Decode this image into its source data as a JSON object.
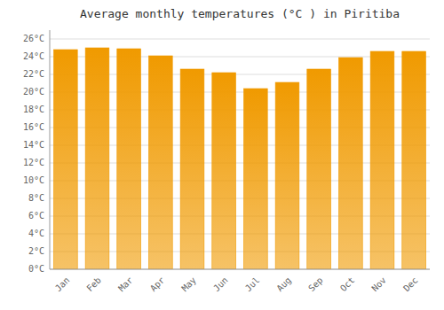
{
  "chart_data": {
    "type": "bar",
    "title": "Average monthly temperatures (°C ) in Piritiba",
    "categories": [
      "Jan",
      "Feb",
      "Mar",
      "Apr",
      "May",
      "Jun",
      "Jul",
      "Aug",
      "Sep",
      "Oct",
      "Nov",
      "Dec"
    ],
    "values": [
      24.8,
      25.0,
      24.9,
      24.1,
      22.6,
      22.2,
      20.4,
      21.1,
      22.6,
      23.9,
      24.6,
      24.6
    ],
    "color": "#f09a00",
    "ylim": [
      0,
      27
    ],
    "yticks": [
      {
        "value": 0,
        "label": "0°C"
      },
      {
        "value": 2,
        "label": "2°C"
      },
      {
        "value": 4,
        "label": "4°C"
      },
      {
        "value": 6,
        "label": "6°C"
      },
      {
        "value": 8,
        "label": "8°C"
      },
      {
        "value": 10,
        "label": "10°C"
      },
      {
        "value": 12,
        "label": "12°C"
      },
      {
        "value": 14,
        "label": "14°C"
      },
      {
        "value": 16,
        "label": "16°C"
      },
      {
        "value": 18,
        "label": "18°C"
      },
      {
        "value": 20,
        "label": "20°C"
      },
      {
        "value": 22,
        "label": "22°C"
      },
      {
        "value": 24,
        "label": "24°C"
      },
      {
        "value": 26,
        "label": "26°C"
      }
    ],
    "grid": true
  }
}
